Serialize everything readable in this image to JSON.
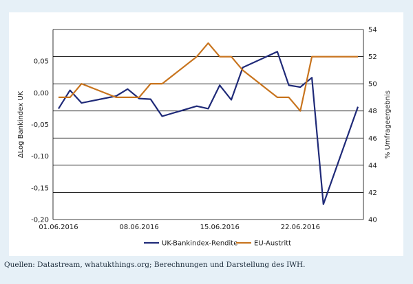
{
  "source_text": "Quellen: Datastream, whatukthings.org; Berechnungen und Darstellung des IWH.",
  "chart_data": {
    "type": "line",
    "title": "",
    "x_tick_labels": [
      "01.06.2016",
      "08.06.2016",
      "15.06.2016",
      "22.06.2016"
    ],
    "left_axis": {
      "label": "ΔLog Bankindex UK",
      "ylim": [
        -0.2,
        0.1
      ],
      "tick_values": [
        -0.2,
        -0.15,
        -0.1,
        -0.05,
        0.0,
        0.05
      ],
      "tick_labels": [
        "-0,20",
        "-0,15",
        "-0,10",
        "-0,05",
        "0,00",
        "0,05"
      ]
    },
    "right_axis": {
      "label": "% Umfrageergebnis",
      "ylim": [
        40,
        54
      ],
      "tick_values": [
        40,
        42,
        44,
        46,
        48,
        50,
        52,
        54
      ],
      "tick_labels": [
        "40",
        "42",
        "44",
        "46",
        "48",
        "50",
        "52",
        "54"
      ]
    },
    "grid": true,
    "legend_position": "bottom-center",
    "series": [
      {
        "name": "UK-Bankindex-Rendite",
        "axis": "left",
        "color": "#1f2a78",
        "x": [
          "01.06.2016",
          "02.06.2016",
          "03.06.2016",
          "06.06.2016",
          "07.06.2016",
          "08.06.2016",
          "09.06.2016",
          "10.06.2016",
          "13.06.2016",
          "14.06.2016",
          "15.06.2016",
          "16.06.2016",
          "17.06.2016",
          "20.06.2016",
          "21.06.2016",
          "22.06.2016",
          "23.06.2016",
          "24.06.2016",
          "27.06.2016"
        ],
        "values": [
          -0.025,
          0.004,
          -0.016,
          -0.005,
          0.006,
          -0.009,
          -0.01,
          -0.037,
          -0.021,
          -0.025,
          0.012,
          -0.011,
          0.04,
          0.065,
          0.012,
          0.009,
          0.024,
          -0.176,
          -0.022
        ]
      },
      {
        "name": "EU-Austritt",
        "axis": "right",
        "color": "#c8741e",
        "x": [
          "01.06.2016",
          "02.06.2016",
          "03.06.2016",
          "06.06.2016",
          "07.06.2016",
          "08.06.2016",
          "09.06.2016",
          "10.06.2016",
          "13.06.2016",
          "14.06.2016",
          "15.06.2016",
          "16.06.2016",
          "17.06.2016",
          "20.06.2016",
          "21.06.2016",
          "22.06.2016",
          "23.06.2016",
          "24.06.2016",
          "27.06.2016"
        ],
        "values": [
          49,
          49,
          50,
          49,
          49,
          49,
          50,
          50,
          52,
          53,
          52,
          52,
          51,
          49,
          49,
          48,
          52,
          52,
          52
        ]
      }
    ]
  }
}
